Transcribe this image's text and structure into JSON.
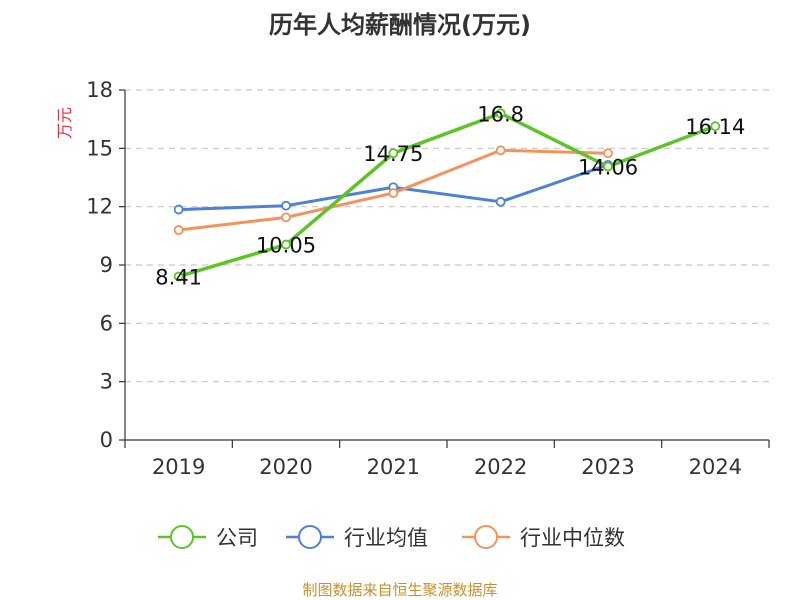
{
  "title": "历年人均薪酬情况(万元)",
  "source": "制图数据来自恒生聚源数据库",
  "chart_data": {
    "type": "line",
    "title": "历年人均薪酬情况(万元)",
    "xlabel": "",
    "ylabel": "万元",
    "categories": [
      "2019",
      "2020",
      "2021",
      "2022",
      "2023",
      "2024"
    ],
    "ylim": [
      0,
      18
    ],
    "yticks": [
      0,
      3,
      6,
      9,
      12,
      15,
      18
    ],
    "grid": "horizontal-dashed",
    "legend_position": "bottom",
    "series": [
      {
        "name": "公司",
        "color": "#5cc524",
        "values": [
          8.41,
          10.05,
          14.75,
          16.8,
          14.06,
          16.14
        ],
        "labels": [
          "8.41",
          "10.05",
          "14.75",
          "16.8",
          "14.06",
          "16.14"
        ]
      },
      {
        "name": "行业均值",
        "color": "#4e7fdc",
        "values": [
          11.85,
          12.05,
          13.0,
          12.25,
          14.15,
          null
        ]
      },
      {
        "name": "行业中位数",
        "color": "#f5925a",
        "values": [
          10.8,
          11.45,
          12.7,
          14.9,
          14.75,
          null
        ]
      }
    ]
  }
}
